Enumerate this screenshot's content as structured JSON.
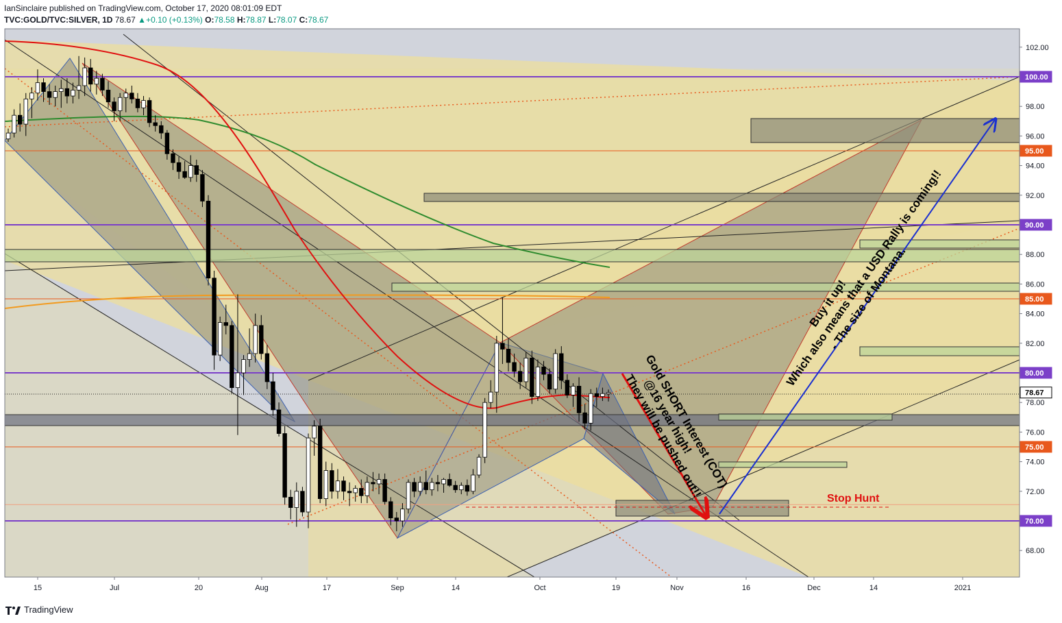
{
  "header": {
    "published_line": "IanSinclaire published on TradingView.com, October 17, 2020 08:01:09 EDT",
    "symbol": "TVC:GOLD/TVC:SILVER, 1D",
    "last": "78.67",
    "change": "+0.10 (+0.13%)",
    "o_label": "O:",
    "o_value": "78.58",
    "h_label": "H:",
    "h_value": "78.87",
    "l_label": "L:",
    "l_value": "78.07",
    "c_label": "C:",
    "c_value": "78.67"
  },
  "brand": {
    "name": "TradingView"
  },
  "colors": {
    "up_candle": "#ffffff",
    "down_candle": "#000000",
    "horizontal_purple": "#7b3fc8",
    "horizontal_orange": "#e8581c",
    "ema_red": "#e01010",
    "ma_green": "#2e8b2e",
    "ma_orange": "#f29a1e",
    "blue_arrow": "#1a2fd0",
    "red_arrow": "#e01010"
  },
  "chart_data": {
    "type": "candlestick",
    "title": "TVC:GOLD/TVC:SILVER, 1D",
    "ylim": [
      66,
      103
    ],
    "y_ticks": [
      "102.00",
      "100.00",
      "98.00",
      "96.00",
      "94.00",
      "92.00",
      "90.00",
      "88.00",
      "86.00",
      "84.00",
      "82.00",
      "80.00",
      "78.00",
      "76.00",
      "74.00",
      "72.00",
      "70.00",
      "68.00"
    ],
    "x_ticks": [
      "15",
      "Jul",
      "20",
      "Aug",
      "17",
      "Sep",
      "14",
      "Oct",
      "19",
      "Nov",
      "16",
      "Dec",
      "14",
      "2021"
    ],
    "price_badges": [
      {
        "label": "100.00",
        "value": 100,
        "color": "#7b3fc8"
      },
      {
        "label": "95.00",
        "value": 95,
        "color": "#e8581c"
      },
      {
        "label": "90.00",
        "value": 90,
        "color": "#7b3fc8"
      },
      {
        "label": "85.00",
        "value": 85,
        "color": "#e8581c"
      },
      {
        "label": "80.00",
        "value": 80,
        "color": "#7b3fc8"
      },
      {
        "label": "78.67",
        "value": 78.67,
        "color": "#000000"
      },
      {
        "label": "75.00",
        "value": 75,
        "color": "#e8581c"
      },
      {
        "label": "70.00",
        "value": 70,
        "color": "#7b3fc8"
      }
    ],
    "horizontal_levels": [
      100,
      95,
      90,
      85,
      80,
      75,
      70
    ],
    "candles": [
      [
        95.8,
        96.5,
        95.6,
        96.2
      ],
      [
        96.2,
        97.8,
        95.9,
        97.4
      ],
      [
        97.4,
        98.2,
        96.3,
        96.8
      ],
      [
        96.8,
        98.9,
        96.0,
        98.5
      ],
      [
        98.5,
        99.3,
        97.2,
        98.9
      ],
      [
        98.9,
        100.5,
        98.4,
        99.6
      ],
      [
        99.6,
        99.9,
        98.3,
        99.0
      ],
      [
        99.0,
        99.5,
        98.1,
        98.6
      ],
      [
        98.6,
        99.4,
        98.0,
        99.0
      ],
      [
        99.0,
        99.8,
        97.9,
        99.2
      ],
      [
        99.2,
        99.9,
        98.2,
        98.7
      ],
      [
        98.7,
        99.6,
        98.2,
        99.1
      ],
      [
        99.1,
        101.4,
        98.5,
        99.4
      ],
      [
        99.4,
        101.3,
        98.7,
        100.6
      ],
      [
        100.6,
        101.2,
        99.0,
        99.5
      ],
      [
        99.5,
        100.4,
        98.8,
        99.9
      ],
      [
        99.9,
        100.2,
        98.7,
        99.1
      ],
      [
        99.1,
        99.7,
        97.9,
        98.3
      ],
      [
        98.3,
        98.6,
        97.0,
        97.7
      ],
      [
        97.7,
        98.9,
        97.0,
        98.6
      ],
      [
        98.6,
        99.2,
        97.6,
        98.9
      ],
      [
        98.9,
        99.4,
        98.2,
        98.5
      ],
      [
        98.5,
        98.9,
        97.6,
        97.9
      ],
      [
        97.9,
        98.7,
        97.4,
        98.4
      ],
      [
        98.4,
        98.6,
        96.6,
        96.9
      ],
      [
        96.9,
        97.4,
        96.3,
        96.7
      ],
      [
        96.7,
        97.0,
        95.8,
        96.2
      ],
      [
        96.2,
        96.4,
        94.4,
        94.8
      ],
      [
        94.8,
        95.1,
        93.7,
        94.2
      ],
      [
        94.2,
        94.6,
        93.1,
        93.6
      ],
      [
        93.6,
        94.3,
        93.1,
        93.2
      ],
      [
        93.2,
        94.7,
        92.9,
        94.0
      ],
      [
        94.0,
        94.4,
        92.9,
        93.4
      ],
      [
        93.4,
        93.7,
        91.2,
        91.6
      ],
      [
        91.6,
        92.0,
        85.9,
        86.4
      ],
      [
        86.4,
        86.9,
        80.2,
        81.2
      ],
      [
        81.2,
        83.8,
        80.8,
        83.4
      ],
      [
        83.4,
        84.6,
        82.6,
        83.2
      ],
      [
        83.2,
        83.5,
        78.6,
        79.0
      ],
      [
        79.0,
        85.3,
        75.8,
        80.0
      ],
      [
        80.0,
        81.2,
        78.5,
        80.9
      ],
      [
        80.9,
        83.0,
        80.4,
        81.3
      ],
      [
        81.3,
        84.0,
        80.7,
        83.2
      ],
      [
        83.2,
        83.9,
        80.9,
        81.3
      ],
      [
        81.3,
        81.9,
        78.9,
        79.4
      ],
      [
        79.4,
        80.0,
        77.1,
        77.5
      ],
      [
        77.5,
        78.0,
        75.7,
        75.9
      ],
      [
        75.9,
        76.4,
        71.1,
        71.6
      ],
      [
        71.6,
        72.1,
        70.1,
        70.9
      ],
      [
        70.9,
        72.6,
        69.6,
        72.0
      ],
      [
        72.0,
        72.3,
        70.3,
        70.6
      ],
      [
        70.6,
        75.9,
        69.5,
        75.6
      ],
      [
        75.6,
        76.8,
        74.4,
        76.4
      ],
      [
        76.4,
        76.9,
        71.2,
        71.5
      ],
      [
        71.5,
        74.0,
        71.0,
        73.4
      ],
      [
        73.4,
        73.9,
        71.5,
        72.0
      ],
      [
        72.0,
        73.5,
        71.5,
        72.7
      ],
      [
        72.7,
        73.0,
        71.4,
        72.0
      ],
      [
        72.0,
        72.6,
        71.0,
        71.9
      ],
      [
        71.9,
        72.4,
        71.3,
        72.2
      ],
      [
        72.2,
        72.8,
        71.2,
        71.7
      ],
      [
        71.7,
        73.0,
        71.2,
        72.6
      ],
      [
        72.6,
        73.3,
        72.0,
        72.5
      ],
      [
        72.5,
        73.2,
        71.8,
        72.8
      ],
      [
        72.8,
        73.2,
        71.1,
        71.3
      ],
      [
        71.3,
        71.6,
        69.7,
        70.2
      ],
      [
        70.2,
        70.6,
        69.3,
        70.0
      ],
      [
        70.0,
        71.2,
        69.6,
        70.8
      ],
      [
        70.8,
        72.8,
        70.5,
        72.6
      ],
      [
        72.6,
        72.9,
        71.6,
        72.0
      ],
      [
        72.0,
        73.0,
        71.7,
        72.6
      ],
      [
        72.6,
        73.4,
        71.8,
        72.1
      ],
      [
        72.1,
        72.9,
        71.7,
        72.6
      ],
      [
        72.6,
        73.1,
        72.0,
        72.5
      ],
      [
        72.5,
        72.9,
        71.9,
        72.8
      ],
      [
        72.8,
        73.2,
        72.3,
        72.4
      ],
      [
        72.4,
        72.7,
        71.9,
        72.1
      ],
      [
        72.1,
        72.6,
        71.8,
        72.4
      ],
      [
        72.4,
        72.8,
        71.7,
        72.0
      ],
      [
        72.0,
        73.5,
        71.8,
        73.1
      ],
      [
        73.1,
        74.5,
        72.9,
        74.3
      ],
      [
        74.3,
        78.3,
        73.9,
        78.0
      ],
      [
        78.0,
        79.5,
        77.6,
        78.7
      ],
      [
        78.7,
        82.5,
        77.3,
        82.0
      ],
      [
        82.0,
        85.1,
        80.6,
        81.6
      ],
      [
        81.6,
        82.3,
        80.1,
        80.7
      ],
      [
        80.7,
        81.3,
        79.7,
        80.1
      ],
      [
        80.1,
        80.7,
        78.9,
        79.4
      ],
      [
        79.4,
        81.4,
        79.0,
        81.0
      ],
      [
        81.0,
        81.5,
        77.9,
        78.4
      ],
      [
        78.4,
        80.9,
        78.1,
        80.4
      ],
      [
        80.4,
        80.8,
        79.5,
        79.9
      ],
      [
        79.9,
        80.3,
        78.6,
        78.9
      ],
      [
        78.9,
        81.6,
        78.6,
        81.3
      ],
      [
        81.3,
        81.8,
        78.9,
        79.5
      ],
      [
        79.5,
        79.9,
        78.3,
        78.5
      ],
      [
        78.5,
        79.3,
        77.7,
        79.1
      ],
      [
        79.1,
        79.7,
        76.7,
        77.3
      ],
      [
        77.3,
        77.9,
        76.2,
        76.6
      ],
      [
        76.6,
        78.9,
        76.1,
        78.6
      ],
      [
        78.6,
        79.0,
        77.7,
        78.4
      ],
      [
        78.4,
        79.0,
        78.1,
        78.6
      ],
      [
        78.58,
        78.87,
        78.07,
        78.67
      ]
    ],
    "overlays": [
      {
        "name": "ema-red"
      },
      {
        "name": "ma-green"
      },
      {
        "name": "ma-orange"
      }
    ]
  },
  "annotations": {
    "gold_short": "Gold SHORT Interest (COT)",
    "gold_short_2": "@16 year high!",
    "gold_short_3": "They will be pushed out!!",
    "buy_1": "Buy it up!",
    "buy_2": "Which also means that a USD Rally is coming!!",
    "buy_3": "- The size of Montana.",
    "stop_hunt": "Stop Hunt"
  }
}
